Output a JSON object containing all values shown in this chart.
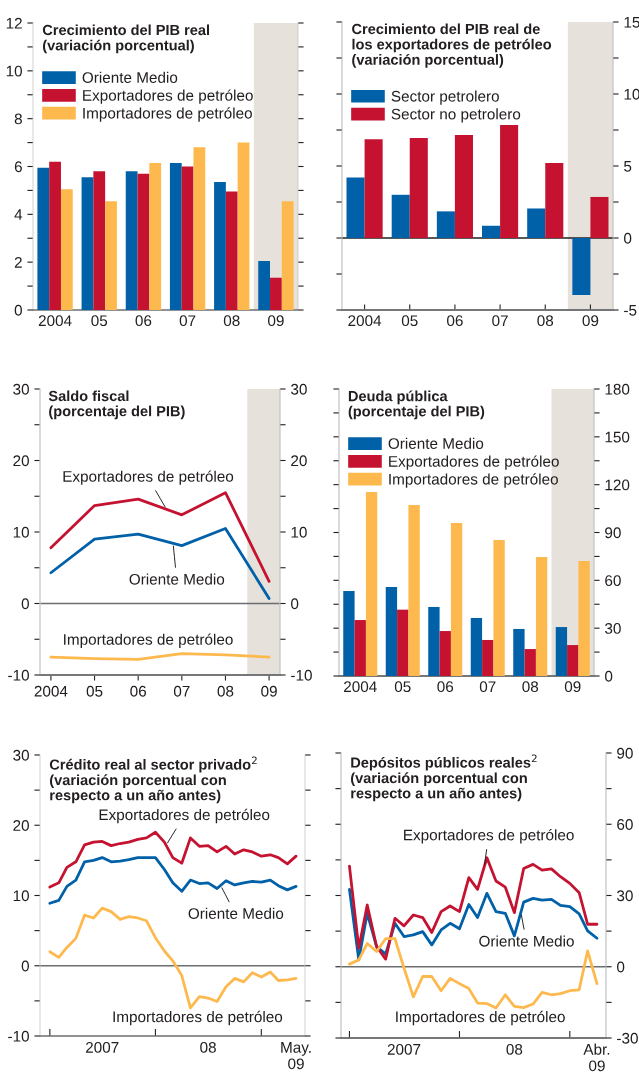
{
  "chart_data": [
    {
      "type": "bar",
      "title": "Crecimiento del PIB real\n(variación porcentual)",
      "categories": [
        "2004",
        "05",
        "06",
        "07",
        "08",
        "09"
      ],
      "series": [
        {
          "name": "Oriente Medio",
          "color": "#0060a8",
          "values": [
            5.95,
            5.55,
            5.8,
            6.15,
            5.35,
            2.05
          ]
        },
        {
          "name": "Exportadores de petróleo",
          "color": "#c41230",
          "values": [
            6.2,
            5.8,
            5.7,
            6.0,
            4.95,
            1.35
          ]
        },
        {
          "name": "Importadores de petróleo",
          "color": "#fdb94e",
          "values": [
            5.05,
            4.55,
            6.15,
            6.8,
            7.0,
            4.55
          ]
        }
      ],
      "ylim": [
        0,
        12
      ],
      "yticks": [
        0,
        {
          "value": 1,
          "label": null
        },
        2,
        {
          "value": 3,
          "label": null
        },
        4,
        {
          "value": 5,
          "label": null
        },
        6,
        {
          "value": 7,
          "label": null
        },
        8,
        {
          "value": 9,
          "label": null
        },
        10,
        {
          "value": 11,
          "label": null
        },
        12
      ],
      "bands": [
        {
          "axis": "x",
          "from": "09",
          "to": "09",
          "color": "#e6e1da"
        }
      ],
      "legend": "top left"
    },
    {
      "type": "bar",
      "title": "Crecimiento del PIB real de\nlos exportadores de petróleo\n(variación porcentual)",
      "categories": [
        "2004",
        "05",
        "06",
        "07",
        "08",
        "09"
      ],
      "series": [
        {
          "name": "Sector petrolero",
          "color": "#0060a8",
          "axis": "y2",
          "values": [
            4.2,
            3.0,
            1.85,
            0.85,
            2.05,
            -3.95
          ]
        },
        {
          "name": "Sector no petrolero",
          "color": "#c41230",
          "axis": "y2",
          "values": [
            6.85,
            6.95,
            7.15,
            7.85,
            5.2,
            2.85
          ]
        }
      ],
      "y2lim": [
        -5,
        15
      ],
      "y2ticks": [
        -5,
        {
          "value": -2.5,
          "label": null
        },
        0,
        {
          "value": 2.5,
          "label": null
        },
        5,
        {
          "value": 7.5,
          "label": null
        },
        10,
        {
          "value": 12.5,
          "label": null
        },
        15
      ],
      "bands": [
        {
          "axis": "x",
          "from": "09",
          "to": "09",
          "color": "#e6e1da"
        }
      ],
      "ref_lines": [
        {
          "axis": "y2",
          "value": 0,
          "color": "#231f20"
        }
      ],
      "legend": "top left"
    },
    {
      "type": "line",
      "title": "Saldo fiscal\n(porcentaje del PIB)",
      "categories": [
        "2004",
        "05",
        "06",
        "07",
        "08",
        "09"
      ],
      "series": [
        {
          "name": "Oriente Medio",
          "color": "#0060a8",
          "values": [
            4.3,
            9.0,
            9.7,
            8.1,
            10.5,
            0.7
          ]
        },
        {
          "name": "Exportadores de petróleo",
          "color": "#c41230",
          "values": [
            7.8,
            13.7,
            14.6,
            12.4,
            15.5,
            3.1
          ]
        },
        {
          "name": "Importadores de petróleo",
          "color": "#fdb94e",
          "values": [
            -7.5,
            -7.7,
            -7.8,
            -7.0,
            -7.2,
            -7.5
          ]
        }
      ],
      "ylim": [
        -10,
        30
      ],
      "yticks": [
        -10,
        {
          "value": -5,
          "label": null
        },
        0,
        {
          "value": 5,
          "label": null
        },
        10,
        {
          "value": 15,
          "label": null
        },
        20,
        {
          "value": 25,
          "label": null
        },
        30
      ],
      "y2lim": [
        -10,
        30
      ],
      "y2ticks": [
        -10,
        {
          "value": -5,
          "label": null
        },
        0,
        {
          "value": 5,
          "label": null
        },
        10,
        {
          "value": 15,
          "label": null
        },
        20,
        {
          "value": 25,
          "label": null
        },
        30
      ],
      "bands": [
        {
          "axis": "x",
          "from": "09",
          "to": "09",
          "color": "#e6e1da"
        }
      ],
      "ref_lines": [
        {
          "axis": "y",
          "value": 0,
          "color": "#6d6e71"
        }
      ]
    },
    {
      "type": "bar",
      "title": "Deuda pública\n(porcentaje del PIB)",
      "categories": [
        "2004",
        "05",
        "06",
        "07",
        "08",
        "09"
      ],
      "series": [
        {
          "name": "Oriente Medio",
          "color": "#0060a8",
          "axis": "y2",
          "values": [
            53.3,
            55.8,
            43.3,
            36.4,
            29.5,
            30.7
          ]
        },
        {
          "name": "Exportadores de petróleo",
          "color": "#c41230",
          "axis": "y2",
          "values": [
            35.1,
            41.6,
            28.2,
            22.6,
            16.9,
            19.4
          ]
        },
        {
          "name": "Importadores de petróleo",
          "color": "#fdb94e",
          "axis": "y2",
          "values": [
            115.4,
            107.3,
            96.0,
            85.3,
            74.6,
            72.1
          ]
        }
      ],
      "y2lim": [
        0,
        180
      ],
      "y2ticks": [
        0,
        {
          "value": 15,
          "label": null
        },
        30,
        {
          "value": 45,
          "label": null
        },
        60,
        {
          "value": 75,
          "label": null
        },
        90,
        {
          "value": 105,
          "label": null
        },
        120,
        {
          "value": 135,
          "label": null
        },
        150,
        {
          "value": 165,
          "label": null
        },
        180
      ],
      "bands": [
        {
          "axis": "x",
          "from": "09",
          "to": "09",
          "color": "#e6e1da"
        }
      ],
      "legend": "top left"
    },
    {
      "type": "line",
      "title": "Crédito real al sector privado$^{2}$\n(variación porcentual con\nrespecto a un año antes)",
      "x": [
        "2007-01",
        "2007-02",
        "2007-03",
        "2007-04",
        "2007-05",
        "2007-06",
        "2007-07",
        "2007-08",
        "2007-09",
        "2007-10",
        "2007-11",
        "2007-12",
        "2008-01",
        "2008-02",
        "2008-03",
        "2008-04",
        "2008-05",
        "2008-06",
        "2008-07",
        "2008-08",
        "2008-09",
        "2008-10",
        "2008-11",
        "2008-12",
        "2009-01",
        "2009-02",
        "2009-03",
        "2009-04",
        "2009-05"
      ],
      "series": [
        {
          "name": "Oriente Medio",
          "color": "#0060a8",
          "values": [
            8.9,
            9.3,
            11.3,
            12.2,
            14.8,
            15.0,
            15.4,
            14.8,
            14.9,
            15.1,
            15.4,
            15.4,
            15.4,
            13.7,
            11.8,
            10.6,
            12.2,
            11.7,
            11.8,
            11.0,
            12.1,
            11.5,
            11.8,
            12.0,
            11.9,
            12.2,
            11.4,
            10.8,
            11.3
          ]
        },
        {
          "name": "Exportadores de petróleo",
          "color": "#c41230",
          "values": [
            11.2,
            11.8,
            14.0,
            14.8,
            17.2,
            17.6,
            17.7,
            17.1,
            17.4,
            17.6,
            18.0,
            18.2,
            19.0,
            17.6,
            15.4,
            14.6,
            18.2,
            17.0,
            17.1,
            16.2,
            17.0,
            15.9,
            16.5,
            16.2,
            15.6,
            15.8,
            15.4,
            14.5,
            15.6
          ]
        },
        {
          "name": "Importadores de petróleo",
          "color": "#fdb94e",
          "values": [
            2.0,
            1.2,
            2.6,
            3.9,
            7.2,
            6.8,
            8.2,
            7.7,
            6.6,
            7.0,
            6.8,
            6.4,
            4.0,
            2.1,
            0.7,
            -1.4,
            -6.0,
            -4.4,
            -4.6,
            -5.1,
            -3.0,
            -1.8,
            -2.3,
            -1.0,
            -1.6,
            -0.9,
            -2.1,
            -2.0,
            -1.8
          ]
        }
      ],
      "xlim": [
        "2006-11-28",
        "2009-06-01"
      ],
      "xticks": [
        {
          "value": "2007-01",
          "label": null
        },
        {
          "value": "2007-07",
          "label": "2007"
        },
        {
          "value": "2008-01",
          "label": null
        },
        {
          "value": "2008-07",
          "label": "08"
        },
        {
          "value": "2009-01",
          "label": null
        },
        {
          "value": "2009-05",
          "label": "May.\n09"
        }
      ],
      "ylim": [
        -10,
        30
      ],
      "yticks": [
        -10,
        {
          "value": -5,
          "label": null
        },
        0,
        {
          "value": 5,
          "label": null
        },
        10,
        {
          "value": 15,
          "label": null
        },
        20,
        {
          "value": 25,
          "label": null
        },
        30
      ],
      "ref_lines": [
        {
          "axis": "y",
          "value": 0,
          "color": "#6d6e71"
        }
      ]
    },
    {
      "type": "line",
      "title": "Depósitos públicos reales$^{2}$\n(variación porcentual con\nrespecto a un año antes)",
      "x": [
        "2007-01",
        "2007-02",
        "2007-03",
        "2007-04",
        "2007-05",
        "2007-06",
        "2007-07",
        "2007-08",
        "2007-09",
        "2007-10",
        "2007-11",
        "2007-12",
        "2008-01",
        "2008-02",
        "2008-03",
        "2008-04",
        "2008-05",
        "2008-06",
        "2008-07",
        "2008-08",
        "2008-09",
        "2008-10",
        "2008-11",
        "2008-12",
        "2009-01",
        "2009-02",
        "2009-03",
        "2009-04"
      ],
      "series": [
        {
          "name": "Oriente Medio",
          "color": "#0060a8",
          "axis": "y2",
          "values": [
            32.6,
            2.9,
            22.5,
            8.5,
            5.3,
            18.3,
            12.7,
            13.4,
            14.8,
            9.2,
            15.5,
            18.3,
            16.0,
            26.2,
            20.7,
            30.9,
            23.2,
            22.5,
            13.0,
            27.2,
            28.8,
            28.1,
            28.4,
            25.8,
            25.3,
            22.3,
            15.1,
            12.0
          ]
        },
        {
          "name": "Exportadores de petróleo",
          "color": "#c41230",
          "axis": "y2",
          "values": [
            42.4,
            7.8,
            26.0,
            8.5,
            3.2,
            20.4,
            17.2,
            21.8,
            20.7,
            14.4,
            23.2,
            25.6,
            23.2,
            37.5,
            32.6,
            45.9,
            36.1,
            33.5,
            22.8,
            41.4,
            43.1,
            40.7,
            41.2,
            37.9,
            35.1,
            31.2,
            17.9,
            17.9
          ]
        },
        {
          "name": "Importadores de petróleo",
          "color": "#fdb94e",
          "axis": "y2",
          "values": [
            1.1,
            2.9,
            9.8,
            6.4,
            11.8,
            11.8,
            -0.6,
            -12.7,
            -4.1,
            -4.1,
            -10.1,
            -4.9,
            -7.1,
            -9.2,
            -15.3,
            -15.5,
            -17.4,
            -11.8,
            -16.7,
            -17.2,
            -15.7,
            -10.8,
            -11.8,
            -11.3,
            -10.1,
            -9.7,
            6.7,
            -7.1
          ]
        }
      ],
      "xlim": [
        "2006-12-04",
        "2009-05-01"
      ],
      "xticks": [
        {
          "value": "2007-01",
          "label": null
        },
        {
          "value": "2007-07",
          "label": "2007"
        },
        {
          "value": "2008-01",
          "label": null
        },
        {
          "value": "2008-07",
          "label": "08"
        },
        {
          "value": "2009-01",
          "label": null
        },
        {
          "value": "2009-04",
          "label": "Abr.\n09"
        }
      ],
      "y2lim": [
        -30,
        90
      ],
      "y2ticks": [
        -30,
        {
          "value": -15,
          "label": null
        },
        0,
        {
          "value": 15,
          "label": null
        },
        30,
        {
          "value": 45,
          "label": null
        },
        60,
        {
          "value": 75,
          "label": null
        },
        90
      ],
      "ref_lines": [
        {
          "axis": "y2",
          "value": 0,
          "color": "#6d6e71"
        }
      ]
    }
  ]
}
